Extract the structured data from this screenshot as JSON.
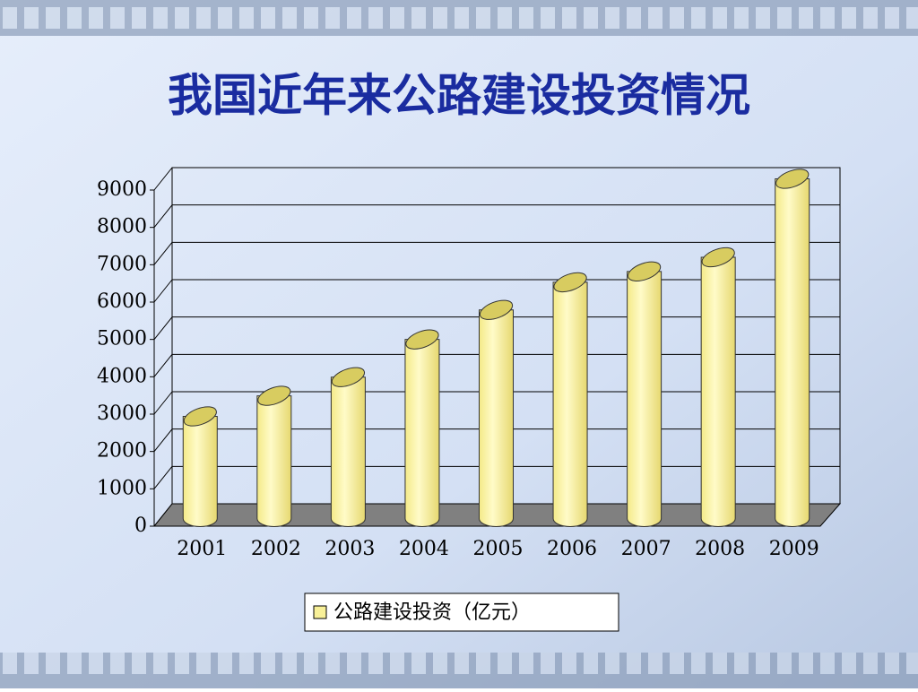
{
  "chart_data": {
    "type": "bar",
    "title": "我国近年来公路建设投资情况",
    "categories": [
      "2001",
      "2002",
      "2003",
      "2004",
      "2005",
      "2006",
      "2007",
      "2008",
      "2009"
    ],
    "series": [
      {
        "name": "公路建设投资（亿元）",
        "color": "#f8f098",
        "values": [
          2640,
          3190,
          3690,
          4700,
          5490,
          6230,
          6520,
          6900,
          9000
        ]
      }
    ],
    "ylim": [
      0,
      9000
    ],
    "yticks": [
      0,
      1000,
      2000,
      3000,
      4000,
      5000,
      6000,
      7000,
      8000,
      9000
    ],
    "grid": true
  }
}
